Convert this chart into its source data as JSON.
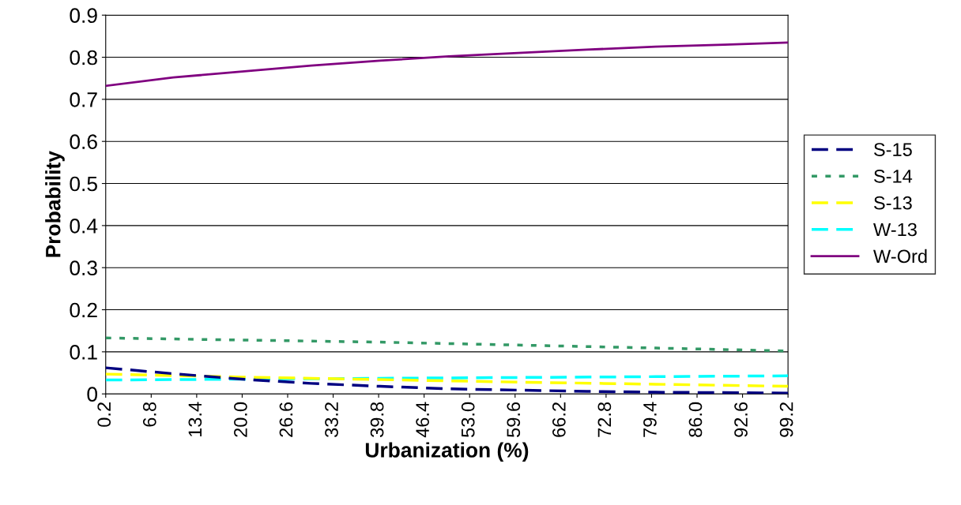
{
  "chart_data": {
    "type": "line",
    "xlabel": "Urbanization (%)",
    "ylabel": "Probability",
    "xlim": [
      0.2,
      99.2
    ],
    "xticks": [
      {
        "value": 0.2,
        "label": "0.2"
      },
      {
        "value": 6.8,
        "label": "6.8"
      },
      {
        "value": 13.4,
        "label": "13.4"
      },
      {
        "value": 20,
        "label": "20.0"
      },
      {
        "value": 26.6,
        "label": "26.6"
      },
      {
        "value": 33.2,
        "label": "33.2"
      },
      {
        "value": 39.8,
        "label": "39.8"
      },
      {
        "value": 46.4,
        "label": "46.4"
      },
      {
        "value": 53,
        "label": "53.0"
      },
      {
        "value": 59.6,
        "label": "59.6"
      },
      {
        "value": 66.2,
        "label": "66.2"
      },
      {
        "value": 72.8,
        "label": "72.8"
      },
      {
        "value": 79.4,
        "label": "79.4"
      },
      {
        "value": 86,
        "label": "86.0"
      },
      {
        "value": 92.6,
        "label": "92.6"
      },
      {
        "value": 99.2,
        "label": "99.2"
      }
    ],
    "ylim": [
      0,
      0.9
    ],
    "yticks": [
      {
        "value": 0,
        "label": "0"
      },
      0.1,
      0.2,
      0.3,
      0.4,
      0.5,
      0.6,
      0.7,
      0.8,
      0.9
    ],
    "grid": "y",
    "legend": "right",
    "marker": "none",
    "series": [
      {
        "name": "S-15",
        "color": "#000080",
        "line_style": "dashed",
        "x": [
          0.2,
          10,
          20,
          30,
          40,
          50,
          60,
          70,
          80,
          99.2
        ],
        "values": [
          0.062,
          0.048,
          0.035,
          0.025,
          0.018,
          0.012,
          0.009,
          0.006,
          0.004,
          0.002
        ]
      },
      {
        "name": "S-14",
        "color": "#339966",
        "line_style": "dotted",
        "x": [
          0.2,
          20,
          40,
          60,
          80,
          99.2
        ],
        "values": [
          0.133,
          0.128,
          0.123,
          0.116,
          0.109,
          0.102
        ]
      },
      {
        "name": "S-13",
        "color": "#ffff00",
        "line_style": "dashed",
        "x": [
          0.2,
          20,
          40,
          60,
          80,
          99.2
        ],
        "values": [
          0.047,
          0.04,
          0.034,
          0.028,
          0.023,
          0.018
        ]
      },
      {
        "name": "W-13",
        "color": "#00ffff",
        "line_style": "dashed",
        "x": [
          0.2,
          20,
          40,
          60,
          80,
          99.2
        ],
        "values": [
          0.033,
          0.035,
          0.037,
          0.039,
          0.041,
          0.043
        ]
      },
      {
        "name": "W-Ord",
        "color": "#800080",
        "line_style": "solid",
        "x": [
          0.2,
          10,
          20,
          30,
          40,
          50,
          60,
          70,
          80,
          90,
          99.2
        ],
        "values": [
          0.732,
          0.752,
          0.766,
          0.78,
          0.792,
          0.802,
          0.81,
          0.818,
          0.825,
          0.83,
          0.835
        ]
      }
    ]
  }
}
